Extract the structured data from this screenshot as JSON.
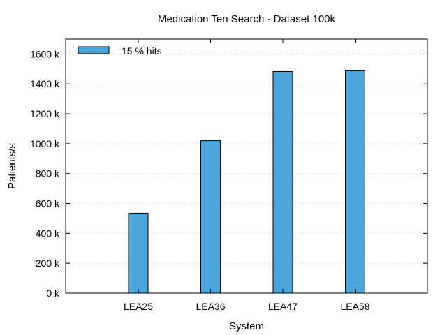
{
  "chart_data": {
    "type": "bar",
    "title": "Medication Ten Search - Dataset 100k",
    "xlabel": "System",
    "ylabel": "Patients/s",
    "categories": [
      "LEA25",
      "LEA36",
      "LEA47",
      "LEA58"
    ],
    "series": [
      {
        "name": "15 % hits",
        "values": [
          535000,
          1020000,
          1483000,
          1488000
        ],
        "color": "#4aa6db"
      }
    ],
    "ylim": [
      0,
      1700000
    ],
    "yticks": [
      0,
      200000,
      400000,
      600000,
      800000,
      1000000,
      1200000,
      1400000,
      1600000
    ],
    "ytick_labels": [
      "0 k",
      "200 k",
      "400 k",
      "600 k",
      "800 k",
      "1000 k",
      "1200 k",
      "1400 k",
      "1600 k"
    ],
    "grid": "horizontal-dotted",
    "legend_position": "top-left"
  }
}
